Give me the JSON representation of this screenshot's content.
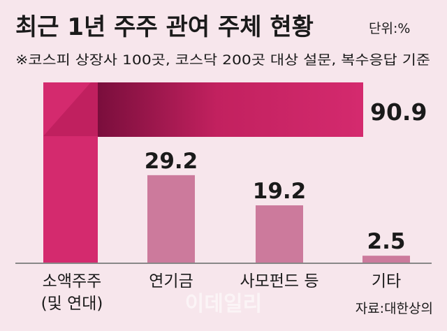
{
  "chart_data": {
    "type": "bar",
    "title": "최근 1년 주주 관여 주체 현황",
    "unit": "단위:%",
    "subtitle": "※코스피 상장사 100곳, 코스닥 200곳 대상 설문, 복수응답 기준",
    "categories": [
      "소액주주\n(및 연대)",
      "연기금",
      "사모펀드 등",
      "기타"
    ],
    "values": [
      90.9,
      29.2,
      19.2,
      2.5
    ],
    "value_labels": [
      "90.9",
      "29.2",
      "19.2",
      "2.5"
    ],
    "ylim": [
      0,
      100
    ],
    "grid": false,
    "colors": {
      "highlight": "#d42a6e",
      "highlight_dark": "#7a0e3c",
      "bar": "#cc7a9c",
      "background": "#f7e6ec",
      "text": "#1a1a1a"
    }
  },
  "source": "자료:대한상의",
  "watermark": "이데일리"
}
